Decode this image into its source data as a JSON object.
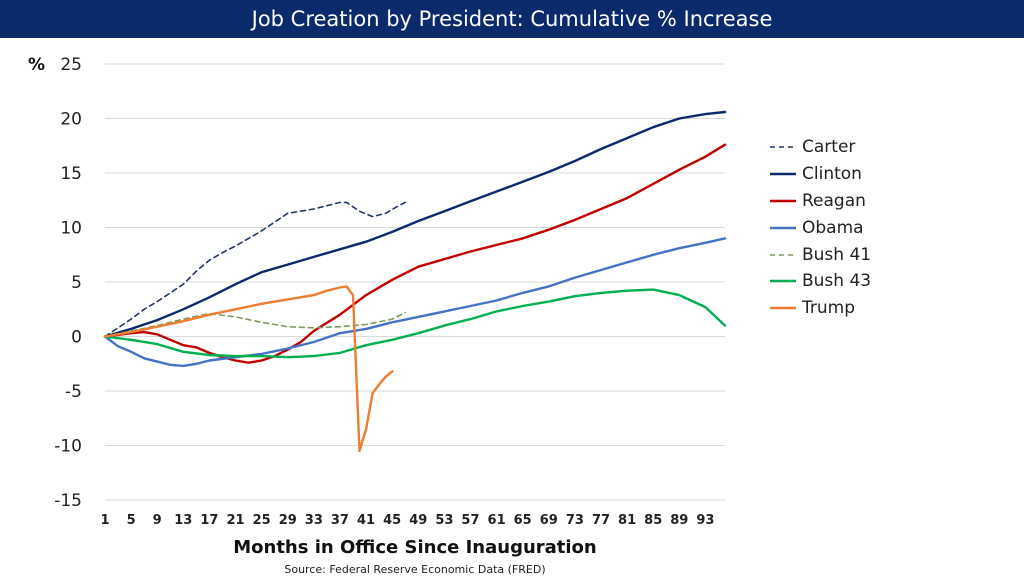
{
  "chart_data": {
    "type": "line",
    "title": "Job Creation by President:  Cumulative % Increase",
    "ylabel": "%",
    "xlabel": "Months in Office Since Inauguration",
    "source": "Source:  Federal Reserve Economic Data (FRED)",
    "ylim": [
      -15,
      25
    ],
    "xlim": [
      1,
      96
    ],
    "y_ticks": [
      "25",
      "20",
      "15",
      "10",
      "5",
      "0",
      "-5",
      "-10",
      "-15"
    ],
    "y_tick_values": [
      25,
      20,
      15,
      10,
      5,
      0,
      -5,
      -10,
      -15
    ],
    "x_ticks": [
      "1",
      "5",
      "9",
      "13",
      "17",
      "21",
      "25",
      "29",
      "33",
      "37",
      "41",
      "45",
      "49",
      "53",
      "57",
      "61",
      "65",
      "69",
      "73",
      "77",
      "81",
      "85",
      "89",
      "93"
    ],
    "grid": true,
    "legend_position": "right",
    "series": [
      {
        "name": "Carter",
        "color": "#203864",
        "dash": true,
        "points": [
          [
            1,
            0
          ],
          [
            3,
            0.8
          ],
          [
            5,
            1.6
          ],
          [
            7,
            2.5
          ],
          [
            9,
            3.2
          ],
          [
            11,
            4
          ],
          [
            13,
            4.8
          ],
          [
            15,
            6
          ],
          [
            17,
            7
          ],
          [
            19,
            7.7
          ],
          [
            21,
            8.3
          ],
          [
            23,
            9
          ],
          [
            25,
            9.7
          ],
          [
            27,
            10.5
          ],
          [
            29,
            11.3
          ],
          [
            31,
            11.5
          ],
          [
            33,
            11.7
          ],
          [
            35,
            12
          ],
          [
            37,
            12.3
          ],
          [
            38,
            12.3
          ],
          [
            40,
            11.5
          ],
          [
            42,
            11
          ],
          [
            44,
            11.3
          ],
          [
            46,
            12
          ],
          [
            47,
            12.3
          ]
        ]
      },
      {
        "name": "Clinton",
        "color": "#0b2a6b",
        "dash": false,
        "points": [
          [
            1,
            0
          ],
          [
            5,
            0.7
          ],
          [
            9,
            1.5
          ],
          [
            13,
            2.5
          ],
          [
            17,
            3.6
          ],
          [
            21,
            4.8
          ],
          [
            25,
            5.9
          ],
          [
            29,
            6.6
          ],
          [
            33,
            7.3
          ],
          [
            37,
            8
          ],
          [
            41,
            8.7
          ],
          [
            45,
            9.6
          ],
          [
            49,
            10.6
          ],
          [
            53,
            11.5
          ],
          [
            57,
            12.4
          ],
          [
            61,
            13.3
          ],
          [
            65,
            14.2
          ],
          [
            69,
            15.1
          ],
          [
            73,
            16.1
          ],
          [
            77,
            17.2
          ],
          [
            81,
            18.2
          ],
          [
            85,
            19.2
          ],
          [
            89,
            20
          ],
          [
            93,
            20.4
          ],
          [
            96,
            20.6
          ]
        ]
      },
      {
        "name": "Reagan",
        "color": "#c00000",
        "dash": false,
        "points": [
          [
            1,
            0
          ],
          [
            5,
            0.3
          ],
          [
            7,
            0.4
          ],
          [
            9,
            0.2
          ],
          [
            11,
            -0.3
          ],
          [
            13,
            -0.8
          ],
          [
            15,
            -1
          ],
          [
            17,
            -1.5
          ],
          [
            19,
            -1.9
          ],
          [
            21,
            -2.2
          ],
          [
            23,
            -2.4
          ],
          [
            25,
            -2.2
          ],
          [
            27,
            -1.8
          ],
          [
            29,
            -1.2
          ],
          [
            31,
            -0.5
          ],
          [
            33,
            0.5
          ],
          [
            37,
            2
          ],
          [
            41,
            3.8
          ],
          [
            45,
            5.2
          ],
          [
            49,
            6.4
          ],
          [
            53,
            7.1
          ],
          [
            57,
            7.8
          ],
          [
            61,
            8.4
          ],
          [
            65,
            9
          ],
          [
            69,
            9.8
          ],
          [
            73,
            10.7
          ],
          [
            77,
            11.7
          ],
          [
            81,
            12.7
          ],
          [
            85,
            14
          ],
          [
            89,
            15.3
          ],
          [
            93,
            16.5
          ],
          [
            96,
            17.6
          ]
        ]
      },
      {
        "name": "Obama",
        "color": "#4472c4",
        "dash": false,
        "points": [
          [
            1,
            0
          ],
          [
            3,
            -0.9
          ],
          [
            5,
            -1.4
          ],
          [
            7,
            -2
          ],
          [
            9,
            -2.3
          ],
          [
            11,
            -2.6
          ],
          [
            13,
            -2.7
          ],
          [
            15,
            -2.5
          ],
          [
            17,
            -2.2
          ],
          [
            21,
            -1.9
          ],
          [
            25,
            -1.6
          ],
          [
            29,
            -1.1
          ],
          [
            33,
            -0.5
          ],
          [
            37,
            0.3
          ],
          [
            41,
            0.7
          ],
          [
            45,
            1.3
          ],
          [
            49,
            1.8
          ],
          [
            53,
            2.3
          ],
          [
            57,
            2.8
          ],
          [
            61,
            3.3
          ],
          [
            65,
            4
          ],
          [
            69,
            4.6
          ],
          [
            73,
            5.4
          ],
          [
            77,
            6.1
          ],
          [
            81,
            6.8
          ],
          [
            85,
            7.5
          ],
          [
            89,
            8.1
          ],
          [
            93,
            8.6
          ],
          [
            96,
            9
          ]
        ]
      },
      {
        "name": "Bush 41",
        "color": "#7f9a5e",
        "dash": true,
        "points": [
          [
            1,
            0
          ],
          [
            5,
            0.5
          ],
          [
            9,
            1
          ],
          [
            13,
            1.6
          ],
          [
            17,
            2.1
          ],
          [
            21,
            1.8
          ],
          [
            25,
            1.3
          ],
          [
            29,
            0.9
          ],
          [
            33,
            0.8
          ],
          [
            37,
            0.9
          ],
          [
            41,
            1.1
          ],
          [
            45,
            1.6
          ],
          [
            47,
            2.2
          ]
        ]
      },
      {
        "name": "Bush 43",
        "color": "#00b050",
        "dash": false,
        "points": [
          [
            1,
            0
          ],
          [
            5,
            -0.3
          ],
          [
            9,
            -0.7
          ],
          [
            13,
            -1.4
          ],
          [
            17,
            -1.7
          ],
          [
            21,
            -1.8
          ],
          [
            25,
            -1.8
          ],
          [
            29,
            -1.9
          ],
          [
            33,
            -1.8
          ],
          [
            37,
            -1.5
          ],
          [
            41,
            -0.8
          ],
          [
            45,
            -0.3
          ],
          [
            49,
            0.3
          ],
          [
            53,
            1
          ],
          [
            57,
            1.6
          ],
          [
            61,
            2.3
          ],
          [
            65,
            2.8
          ],
          [
            69,
            3.2
          ],
          [
            73,
            3.7
          ],
          [
            77,
            4
          ],
          [
            81,
            4.2
          ],
          [
            85,
            4.3
          ],
          [
            89,
            3.8
          ],
          [
            93,
            2.7
          ],
          [
            96,
            1
          ]
        ]
      },
      {
        "name": "Trump",
        "color": "#ed7d31",
        "dash": false,
        "points": [
          [
            1,
            0
          ],
          [
            5,
            0.4
          ],
          [
            9,
            0.9
          ],
          [
            13,
            1.4
          ],
          [
            17,
            2
          ],
          [
            21,
            2.5
          ],
          [
            25,
            3
          ],
          [
            29,
            3.4
          ],
          [
            33,
            3.8
          ],
          [
            35,
            4.2
          ],
          [
            37,
            4.5
          ],
          [
            38,
            4.6
          ],
          [
            39,
            3.8
          ],
          [
            40,
            -10.5
          ],
          [
            41,
            -8.5
          ],
          [
            42,
            -5.2
          ],
          [
            43,
            -4.4
          ],
          [
            44,
            -3.7
          ],
          [
            45,
            -3.2
          ]
        ]
      }
    ]
  }
}
